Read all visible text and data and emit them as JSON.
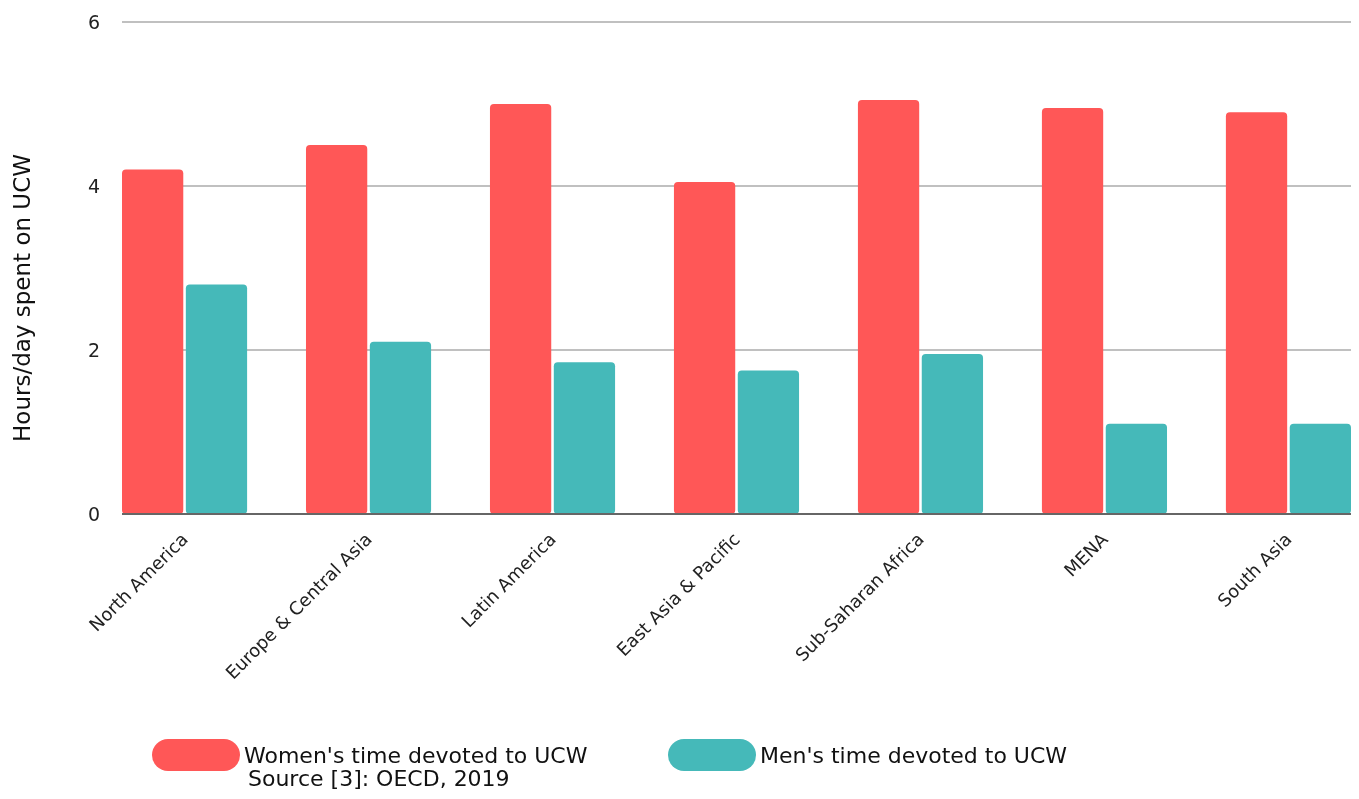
{
  "chart_data": {
    "type": "bar",
    "ylabel": "Hours/day spent on UCW",
    "categories": [
      "North America",
      "Europe & Central Asia",
      "Latin America",
      "East Asia & Pacific",
      "Sub-Saharan Africa",
      "MENA",
      "South Asia"
    ],
    "series": [
      {
        "name": "Women's time devoted to UCW",
        "color": "#ff5757",
        "values": [
          4.2,
          4.5,
          5.0,
          4.05,
          5.05,
          4.95,
          4.9
        ]
      },
      {
        "name": "Men's time devoted to UCW",
        "color": "#45b9b9",
        "values": [
          2.8,
          2.1,
          1.85,
          1.75,
          1.95,
          1.1,
          1.1
        ]
      }
    ],
    "ylim": [
      0,
      6
    ],
    "yticks": [
      0,
      2,
      4,
      6
    ],
    "grid": "y",
    "legend": "bottom",
    "annotations": [
      "Source [3]: OECD, 2019"
    ]
  }
}
